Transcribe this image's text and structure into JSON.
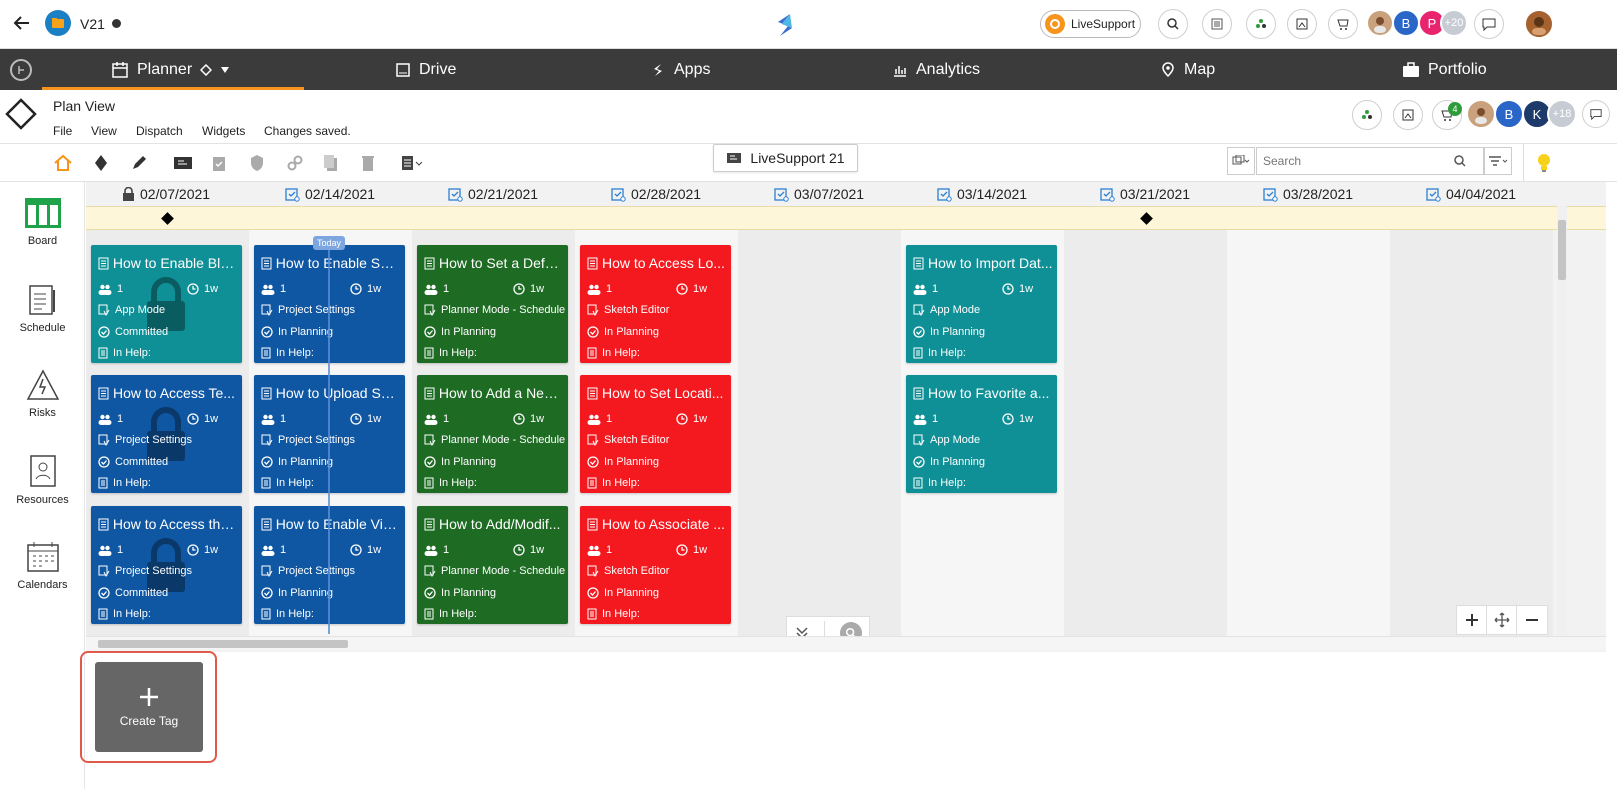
{
  "topbar": {
    "project_name": "V21",
    "livesupport_label": "LiveSupport",
    "avatars": [
      "B",
      "P"
    ],
    "avatars_more": "+20"
  },
  "mainnav": {
    "items": [
      "Planner",
      "Drive",
      "Apps",
      "Analytics",
      "Map",
      "Portfolio"
    ]
  },
  "planheader": {
    "title": "Plan View",
    "menus": [
      "File",
      "View",
      "Dispatch",
      "Widgets"
    ],
    "status": "Changes saved.",
    "notif_count": "4",
    "avatars": [
      "B",
      "K"
    ],
    "avatars_more": "+18"
  },
  "toolbar": {
    "center_label": "LiveSupport 21",
    "search_placeholder": "Search"
  },
  "sidepanel": {
    "items": [
      "Board",
      "Schedule",
      "Risks",
      "Resources",
      "Calendars"
    ]
  },
  "board": {
    "dates": [
      "02/07/2021",
      "02/14/2021",
      "02/21/2021",
      "02/28/2021",
      "03/07/2021",
      "03/14/2021",
      "03/21/2021",
      "03/28/2021",
      "04/04/2021"
    ],
    "today_label": "Today",
    "colors": {
      "teal": "#0f9096",
      "blue": "#0f57a3",
      "green": "#1e6b24",
      "red": "#f4181f"
    },
    "cards": [
      {
        "col": 0,
        "row": 0,
        "color": "teal",
        "title": "How to Enable Blo...",
        "count": "1",
        "duration": "1w",
        "tag": "App Mode",
        "status": "Committed",
        "help": "In Help:",
        "locked": true
      },
      {
        "col": 0,
        "row": 1,
        "color": "blue",
        "title": "How to Access Te...",
        "count": "1",
        "duration": "1w",
        "tag": "Project Settings",
        "status": "Committed",
        "help": "In Help:",
        "locked": true
      },
      {
        "col": 0,
        "row": 2,
        "color": "blue",
        "title": "How to Access the...",
        "count": "1",
        "duration": "1w",
        "tag": "Project Settings",
        "status": "Committed",
        "help": "In Help:",
        "locked": true
      },
      {
        "col": 1,
        "row": 0,
        "color": "blue",
        "title": "How to Enable Saf...",
        "count": "1",
        "duration": "1w",
        "tag": "Project Settings",
        "status": "In Planning",
        "help": "In Help:",
        "locked": false
      },
      {
        "col": 1,
        "row": 1,
        "color": "blue",
        "title": "How to Upload Saf...",
        "count": "1",
        "duration": "1w",
        "tag": "Project Settings",
        "status": "In Planning",
        "help": "In Help:",
        "locked": false
      },
      {
        "col": 1,
        "row": 2,
        "color": "blue",
        "title": "How to Enable Visi...",
        "count": "1",
        "duration": "1w",
        "tag": "Project Settings",
        "status": "In Planning",
        "help": "In Help:",
        "locked": false
      },
      {
        "col": 2,
        "row": 0,
        "color": "green",
        "title": "How to Set a Defa...",
        "count": "1",
        "duration": "1w",
        "tag": "Planner Mode - Schedule",
        "status": "In Planning",
        "help": "In Help:",
        "locked": false
      },
      {
        "col": 2,
        "row": 1,
        "color": "green",
        "title": "How to Add a New...",
        "count": "1",
        "duration": "1w",
        "tag": "Planner Mode - Schedule",
        "status": "In Planning",
        "help": "In Help:",
        "locked": false
      },
      {
        "col": 2,
        "row": 2,
        "color": "green",
        "title": "How to Add/Modif...",
        "count": "1",
        "duration": "1w",
        "tag": "Planner Mode - Schedule",
        "status": "In Planning",
        "help": "In Help:",
        "locked": false
      },
      {
        "col": 3,
        "row": 0,
        "color": "red",
        "title": "How to Access Lo...",
        "count": "1",
        "duration": "1w",
        "tag": "Sketch Editor",
        "status": "In Planning",
        "help": "In Help:",
        "locked": false
      },
      {
        "col": 3,
        "row": 1,
        "color": "red",
        "title": "How to Set Locati...",
        "count": "1",
        "duration": "1w",
        "tag": "Sketch Editor",
        "status": "In Planning",
        "help": "In Help:",
        "locked": false
      },
      {
        "col": 3,
        "row": 2,
        "color": "red",
        "title": "How to Associate ...",
        "count": "1",
        "duration": "1w",
        "tag": "Sketch Editor",
        "status": "In Planning",
        "help": "In Help:",
        "locked": false
      },
      {
        "col": 5,
        "row": 0,
        "color": "teal",
        "title": "How to Import Dat...",
        "count": "1",
        "duration": "1w",
        "tag": "App Mode",
        "status": "In Planning",
        "help": "In Help:",
        "locked": false
      },
      {
        "col": 5,
        "row": 1,
        "color": "teal",
        "title": "How to Favorite a...",
        "count": "1",
        "duration": "1w",
        "tag": "App Mode",
        "status": "In Planning",
        "help": "In Help:",
        "locked": false
      }
    ]
  },
  "create_tag": {
    "label": "Create Tag"
  }
}
